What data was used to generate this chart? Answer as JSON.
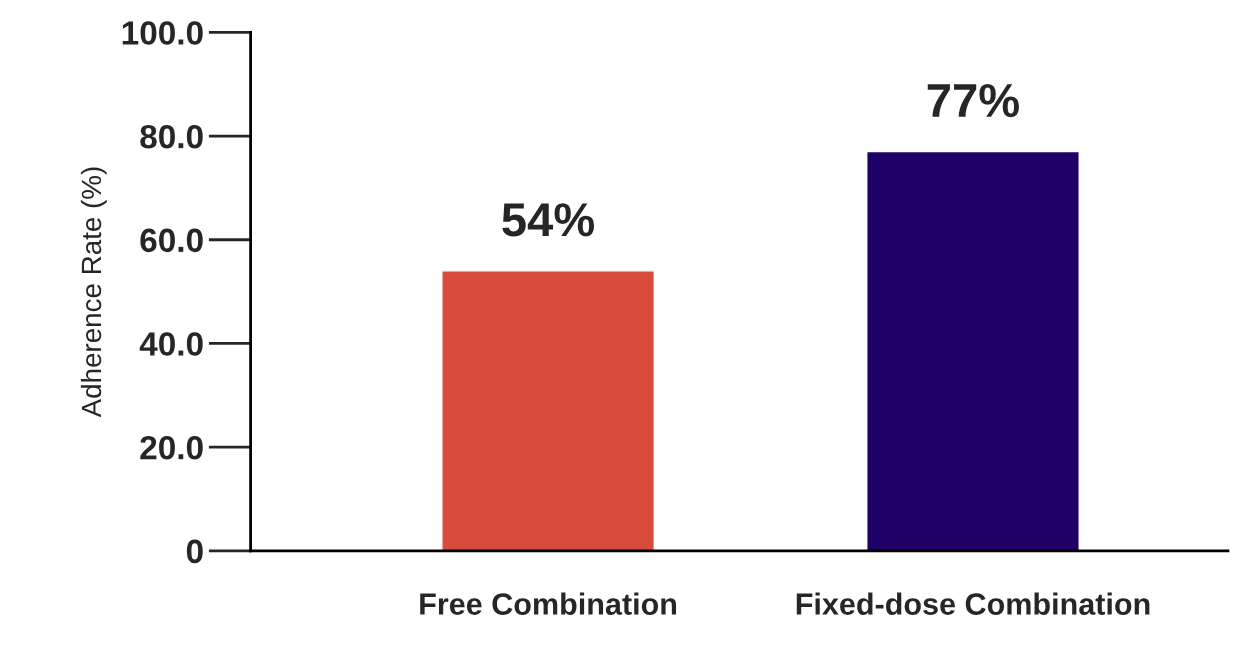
{
  "chart_data": {
    "type": "bar",
    "ylabel": "Adherence Rate (%)",
    "categories": [
      "Free Combination",
      "Fixed-dose Combination"
    ],
    "values": [
      54,
      77
    ],
    "colors": [
      "#d64b3a",
      "#1e0066"
    ],
    "value_labels": [
      "54%",
      "77%"
    ],
    "ylim": [
      0,
      100
    ],
    "yticks": [
      0,
      {
        "value": 20,
        "label": "20.0"
      },
      {
        "value": 40,
        "label": "40.0"
      },
      {
        "value": 60,
        "label": "60.0"
      },
      {
        "value": 80,
        "label": "80.0"
      },
      {
        "value": 100,
        "label": "100.0"
      }
    ],
    "grid": false,
    "legend": false
  }
}
